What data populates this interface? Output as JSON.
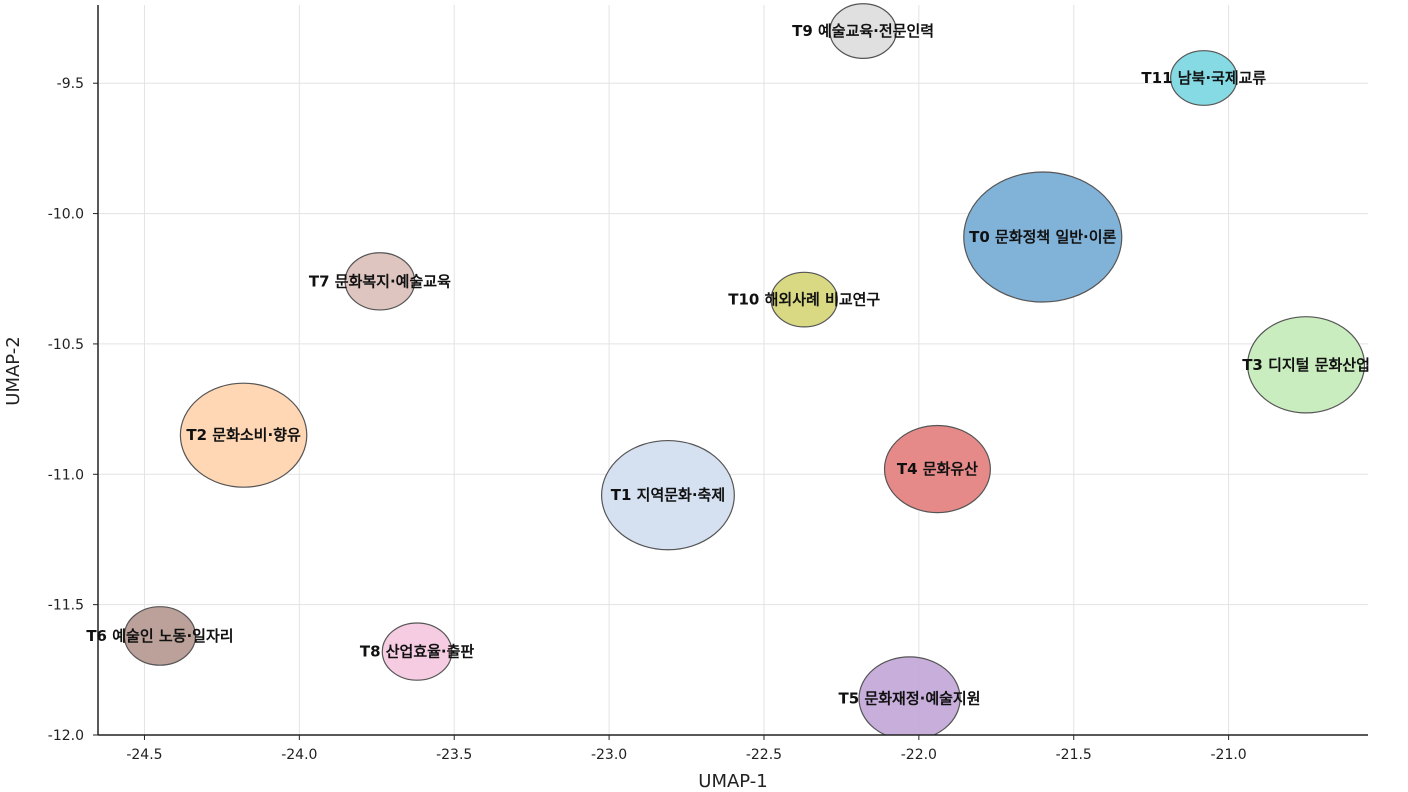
{
  "chart_data": {
    "type": "scatter",
    "xlabel": "UMAP-1",
    "ylabel": "UMAP-2",
    "xlim": [
      -24.65,
      -20.55
    ],
    "ylim": [
      -12.0,
      -9.2
    ],
    "xticks": [
      -24.5,
      -24.0,
      -23.5,
      -23.0,
      -22.5,
      -22.0,
      -21.5,
      -21.0
    ],
    "xtick_labels": [
      "-24.5",
      "-24.0",
      "-23.5",
      "-23.0",
      "-22.5",
      "-22.0",
      "-21.5",
      "-21.0"
    ],
    "yticks": [
      -9.5,
      -10.0,
      -10.5,
      -11.0,
      -11.5,
      -12.0
    ],
    "ytick_labels": [
      "-9.5",
      "-10.0",
      "-10.5",
      "-11.0",
      "-11.5",
      "-12.0"
    ],
    "grid": true,
    "points": [
      {
        "label": "T0 문화정책 일반·이론",
        "x": -21.6,
        "y": -10.09,
        "size": 1.0,
        "color": "#7aaed6"
      },
      {
        "label": "T1 지역문화·축제",
        "x": -22.81,
        "y": -11.08,
        "size": 0.84,
        "color": "#d3dff0"
      },
      {
        "label": "T2 문화소비·향유",
        "x": -24.18,
        "y": -10.85,
        "size": 0.8,
        "color": "#ffd5b0"
      },
      {
        "label": "T3 디지털 문화산업",
        "x": -20.75,
        "y": -10.58,
        "size": 0.74,
        "color": "#c7ecbc"
      },
      {
        "label": "T4 문화유산",
        "x": -21.94,
        "y": -10.98,
        "size": 0.67,
        "color": "#e58483"
      },
      {
        "label": "T5 문화재정·예술지원",
        "x": -22.03,
        "y": -11.86,
        "size": 0.64,
        "color": "#c4aad9"
      },
      {
        "label": "T6 예술인 노동·일자리",
        "x": -24.45,
        "y": -11.62,
        "size": 0.45,
        "color": "#b79c94"
      },
      {
        "label": "T7 문화복지·예술교육",
        "x": -23.74,
        "y": -10.26,
        "size": 0.44,
        "color": "#dcc2bd"
      },
      {
        "label": "T8 산업효율·출판",
        "x": -23.62,
        "y": -11.68,
        "size": 0.44,
        "color": "#f6c9e0"
      },
      {
        "label": "T9 예술교육·전문인력",
        "x": -22.18,
        "y": -9.3,
        "size": 0.42,
        "color": "#dedede"
      },
      {
        "label": "T10 해외사례 비교연구",
        "x": -22.37,
        "y": -10.33,
        "size": 0.42,
        "color": "#d7d77c"
      },
      {
        "label": "T11 남북·국제교류",
        "x": -21.08,
        "y": -9.48,
        "size": 0.42,
        "color": "#7ed8e3"
      }
    ]
  }
}
